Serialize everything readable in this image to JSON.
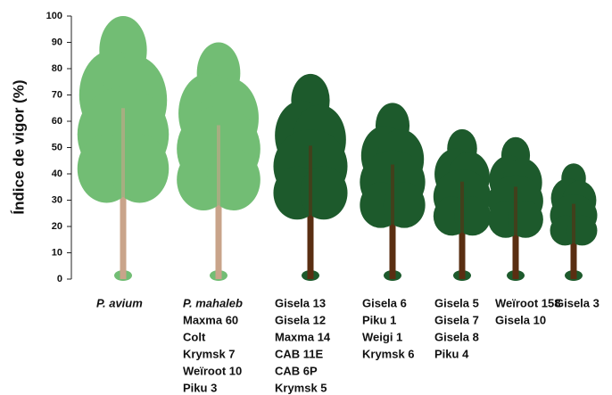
{
  "chart_data": {
    "type": "tree-pictogram",
    "y_label": "Índice de vigor (%)",
    "categories": [
      [
        "P. avium"
      ],
      [
        "P. mahaleb",
        "Maxma 60",
        "Colt",
        "Krymsk 7",
        "Weïroot 10",
        "Piku 3"
      ],
      [
        "Gisela 13",
        "Gisela 12",
        "Maxma 14",
        "CAB 11E",
        "CAB 6P",
        "Krymsk 5"
      ],
      [
        "Gisela 6",
        "Piku 1",
        "Weigi 1",
        "Krymsk 6"
      ],
      [
        "Gisela 5",
        "Gisela 7",
        "Gisela 8",
        "Piku 4"
      ],
      [
        "Weïroot 158",
        "Gisela 10"
      ],
      [
        "Gisela 3"
      ]
    ],
    "values": [
      100,
      90,
      78,
      67,
      57,
      54,
      44
    ],
    "colors": [
      "#72bd74",
      "#72bd74",
      "#1d5a2c",
      "#1d5a2c",
      "#1d5a2c",
      "#1d5a2c",
      "#1d5a2c"
    ],
    "trunk_colors": [
      "#c9a48a",
      "#c9a48a",
      "#5a2e12",
      "#5a2e12",
      "#5a2e12",
      "#5a2e12",
      "#5a2e12"
    ],
    "ylim": [
      0,
      100
    ],
    "yticks": [
      0,
      10,
      20,
      30,
      40,
      50,
      60,
      70,
      80,
      90,
      100
    ]
  }
}
